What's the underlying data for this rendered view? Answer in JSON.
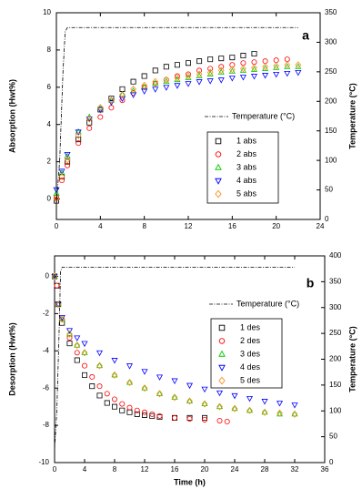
{
  "chart_data": [
    {
      "type": "scatter",
      "panel_label": "a",
      "ylabel": "Absorption (Hwt%)",
      "y2label": "Temperature (°C)",
      "xlim": [
        0,
        24
      ],
      "xticks": [
        0,
        4,
        8,
        12,
        16,
        20,
        24
      ],
      "ylim": [
        -1.1,
        10
      ],
      "yticks": [
        0,
        2,
        4,
        6,
        8,
        10
      ],
      "y2lim": [
        0,
        350
      ],
      "y2ticks": [
        0,
        50,
        100,
        150,
        200,
        250,
        300,
        350
      ],
      "series": [
        {
          "name": "1 abs",
          "color": "#000000",
          "marker": "square",
          "x": [
            0,
            0.5,
            1,
            2,
            3,
            4,
            5,
            6,
            7,
            8,
            9,
            10,
            11,
            12,
            13,
            14,
            15,
            16,
            17,
            18
          ],
          "values": [
            -0.1,
            1.2,
            2.0,
            3.2,
            4.1,
            4.8,
            5.4,
            5.9,
            6.3,
            6.6,
            6.9,
            7.1,
            7.2,
            7.3,
            7.4,
            7.5,
            7.55,
            7.6,
            7.7,
            7.8
          ]
        },
        {
          "name": "2 abs",
          "color": "#ff0000",
          "marker": "circle",
          "x": [
            0,
            0.5,
            1,
            2,
            3,
            4,
            5,
            6,
            7,
            8,
            9,
            10,
            11,
            12,
            13,
            14,
            15,
            16,
            17,
            18,
            19,
            20,
            21
          ],
          "values": [
            0.1,
            1.0,
            1.8,
            3.0,
            3.8,
            4.4,
            4.9,
            5.3,
            5.7,
            6.0,
            6.2,
            6.4,
            6.6,
            6.7,
            6.9,
            7.0,
            7.1,
            7.2,
            7.3,
            7.35,
            7.4,
            7.45,
            7.5
          ]
        },
        {
          "name": "3 abs",
          "color": "#00cc00",
          "marker": "triangle-up",
          "x": [
            0,
            0.5,
            1,
            2,
            3,
            4,
            5,
            6,
            7,
            8,
            9,
            10,
            11,
            12,
            13,
            14,
            15,
            16,
            17,
            18,
            19,
            20,
            21,
            22
          ],
          "values": [
            0.3,
            1.4,
            2.3,
            3.6,
            4.4,
            4.9,
            5.3,
            5.6,
            5.8,
            6.0,
            6.2,
            6.3,
            6.4,
            6.5,
            6.6,
            6.7,
            6.8,
            6.85,
            6.9,
            6.95,
            7.0,
            7.05,
            7.1,
            7.1
          ]
        },
        {
          "name": "4 abs",
          "color": "#0000ff",
          "marker": "triangle-down",
          "x": [
            0,
            0.5,
            1,
            2,
            3,
            4,
            5,
            6,
            7,
            8,
            9,
            10,
            11,
            12,
            13,
            14,
            15,
            16,
            17,
            18,
            19,
            20,
            21,
            22
          ],
          "values": [
            0.5,
            1.5,
            2.4,
            3.6,
            4.3,
            4.8,
            5.2,
            5.4,
            5.6,
            5.8,
            5.9,
            6.0,
            6.1,
            6.2,
            6.3,
            6.35,
            6.4,
            6.5,
            6.55,
            6.6,
            6.65,
            6.7,
            6.75,
            6.8
          ]
        },
        {
          "name": "5 abs",
          "color": "#ff8c1a",
          "marker": "diamond",
          "x": [
            0,
            0.5,
            1,
            2,
            3,
            4,
            5,
            6,
            7,
            8,
            9,
            10,
            11,
            12,
            13,
            14,
            15,
            16,
            17,
            18,
            19,
            20,
            21,
            22
          ],
          "values": [
            0,
            1.2,
            2.1,
            3.4,
            4.3,
            4.9,
            5.3,
            5.6,
            5.9,
            6.1,
            6.3,
            6.4,
            6.5,
            6.6,
            6.7,
            6.8,
            6.9,
            6.95,
            7.0,
            7.05,
            7.1,
            7.15,
            7.2,
            7.2
          ]
        },
        {
          "name": "Temperature (°C)",
          "color": "#000000",
          "line": "dashdot",
          "axis": "y2",
          "x": [
            0,
            0.3,
            0.6,
            0.8,
            1,
            22
          ],
          "values": [
            25,
            100,
            250,
            318,
            325,
            325
          ]
        }
      ]
    },
    {
      "type": "scatter",
      "panel_label": "b",
      "ylabel": "Desorption (Hwt%)",
      "y2label": "Temperature (°C)",
      "xlabel": "Time (h)",
      "xlim": [
        0,
        36
      ],
      "xticks": [
        0,
        4,
        8,
        12,
        16,
        20,
        24,
        28,
        32,
        36
      ],
      "ylim": [
        -10,
        1.1
      ],
      "yticks": [
        -10,
        -8,
        -6,
        -4,
        -2,
        0
      ],
      "y2lim": [
        0,
        400
      ],
      "y2ticks": [
        0,
        50,
        100,
        150,
        200,
        250,
        300,
        350,
        400
      ],
      "series": [
        {
          "name": "1 des",
          "color": "#000000",
          "marker": "square",
          "x": [
            0,
            0.3,
            0.5,
            1,
            2,
            3,
            4,
            5,
            6,
            7,
            8,
            9,
            10,
            11,
            12,
            13,
            14,
            16,
            18,
            20
          ],
          "values": [
            0,
            -0.5,
            -1.5,
            -2.5,
            -3.6,
            -4.5,
            -5.3,
            -5.9,
            -6.4,
            -6.8,
            -7.0,
            -7.2,
            -7.3,
            -7.4,
            -7.45,
            -7.5,
            -7.55,
            -7.6,
            -7.6,
            -7.6
          ]
        },
        {
          "name": "2 des",
          "color": "#ff0000",
          "marker": "circle",
          "x": [
            0,
            0.3,
            0.5,
            1,
            2,
            3,
            4,
            5,
            6,
            7,
            8,
            9,
            10,
            11,
            12,
            13,
            14,
            16,
            18,
            20,
            22,
            23
          ],
          "values": [
            0,
            -0.5,
            -1.5,
            -2.3,
            -3.3,
            -4.1,
            -4.8,
            -5.4,
            -5.9,
            -6.3,
            -6.6,
            -6.85,
            -7.05,
            -7.2,
            -7.3,
            -7.4,
            -7.5,
            -7.6,
            -7.65,
            -7.7,
            -7.75,
            -7.8
          ]
        },
        {
          "name": "3 des",
          "color": "#00cc00",
          "marker": "triangle-up",
          "x": [
            0,
            0.5,
            1,
            2,
            3,
            4,
            6,
            8,
            10,
            12,
            14,
            16,
            18,
            20,
            22,
            24,
            26,
            28,
            30,
            32
          ],
          "values": [
            0,
            -1.5,
            -2.3,
            -3.1,
            -3.7,
            -4.1,
            -4.8,
            -5.3,
            -5.7,
            -6.0,
            -6.3,
            -6.5,
            -6.7,
            -6.85,
            -7.0,
            -7.1,
            -7.2,
            -7.3,
            -7.4,
            -7.4
          ]
        },
        {
          "name": "4 des",
          "color": "#0000ff",
          "marker": "triangle-down",
          "x": [
            0,
            0.5,
            1,
            2,
            3,
            4,
            6,
            8,
            10,
            12,
            14,
            16,
            18,
            20,
            22,
            24,
            26,
            28,
            30,
            32
          ],
          "values": [
            0,
            -1.5,
            -2.2,
            -2.9,
            -3.3,
            -3.6,
            -4.1,
            -4.5,
            -4.8,
            -5.1,
            -5.4,
            -5.6,
            -5.85,
            -6.05,
            -6.25,
            -6.4,
            -6.55,
            -6.7,
            -6.8,
            -6.9
          ]
        },
        {
          "name": "5 des",
          "color": "#ff8c1a",
          "marker": "diamond",
          "x": [
            0,
            0.5,
            1,
            2,
            3,
            4,
            6,
            8,
            10,
            12,
            14,
            16,
            18,
            20,
            22,
            24,
            26,
            28,
            30,
            32
          ],
          "values": [
            0,
            -1.5,
            -2.3,
            -3.1,
            -3.7,
            -4.1,
            -4.8,
            -5.3,
            -5.7,
            -6.0,
            -6.3,
            -6.5,
            -6.7,
            -6.85,
            -7.0,
            -7.1,
            -7.2,
            -7.3,
            -7.35,
            -7.4
          ]
        },
        {
          "name": "Temperature (°C)",
          "color": "#000000",
          "line": "dashdot",
          "axis": "y2",
          "x": [
            0,
            0.3,
            0.6,
            0.8,
            1,
            32
          ],
          "values": [
            25,
            100,
            250,
            370,
            378,
            378
          ]
        }
      ]
    }
  ]
}
